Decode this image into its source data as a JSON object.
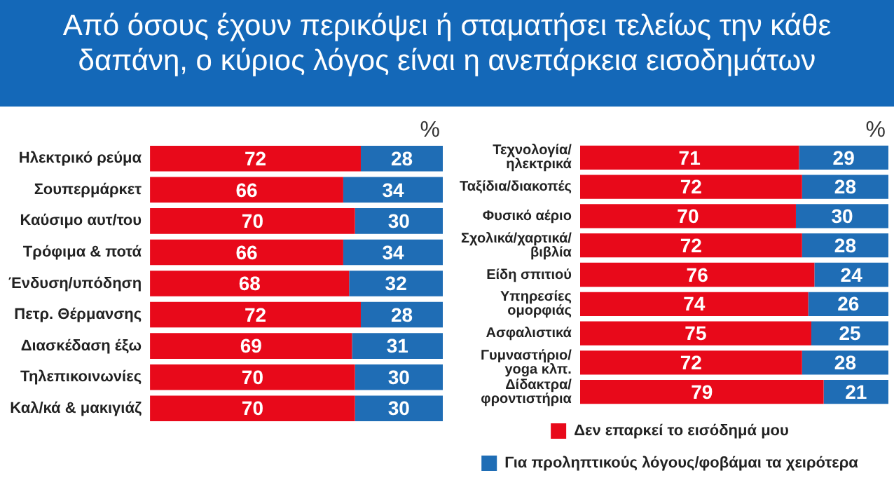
{
  "chart_data": [
    {
      "type": "bar",
      "orientation": "horizontal",
      "stacked": true,
      "title": "Από όσους έχουν περικόψει ή σταματήσει τελείως την κάθε δαπάνη, ο κύριος λόγος είναι η ανεπάρκεια εισοδημάτων",
      "categories": [
        "Ηλεκτρικό ρεύμα",
        "Σουπερμάρκετ",
        "Καύσιμο αυτ/του",
        "Τρόφιμα & ποτά",
        "Ένδυση/υπόδηση",
        "Πετρ. Θέρμανσης",
        "Διασκέδαση έξω",
        "Τηλεπικοινωνίες",
        "Καλ/κά & μακιγιάζ"
      ],
      "series": [
        {
          "color": "#e8091a",
          "values": [
            72,
            66,
            70,
            66,
            68,
            72,
            69,
            70,
            70
          ]
        },
        {
          "color": "#1f6db5",
          "values": [
            28,
            34,
            30,
            34,
            32,
            28,
            31,
            30,
            30
          ]
        }
      ],
      "xlim": [
        0,
        100
      ],
      "tick_labels": "y",
      "data_labels": true,
      "grid": false,
      "legend": false,
      "annotations": [
        "%"
      ]
    },
    {
      "type": "bar",
      "orientation": "horizontal",
      "stacked": true,
      "categories": [
        "Τεχνολογία/\nηλεκτρικά",
        "Ταξίδια/διακοπές",
        "Φυσικό αέριο",
        "Σχολικά/χαρτικά/\nβιβλία",
        "Είδη σπιτιού",
        "Υπηρεσίες\nομορφιάς",
        "Ασφαλιστικά",
        "Γυμναστήριο/\nyoga κλπ.",
        "Δίδακτρα/\nφροντιστήρια"
      ],
      "series": [
        {
          "name": "Δεν επαρκεί το εισόδημά μου",
          "color": "#e8091a",
          "values": [
            71,
            72,
            70,
            72,
            76,
            74,
            75,
            72,
            79
          ]
        },
        {
          "name": "Για προληπτικούς λόγους/φοβάμαι τα χειρότερα",
          "color": "#1f6db5",
          "values": [
            29,
            28,
            30,
            28,
            24,
            26,
            25,
            28,
            21
          ]
        }
      ],
      "xlim": [
        0,
        100
      ],
      "tick_labels": "y",
      "data_labels": true,
      "grid": false,
      "legend": "bottom",
      "annotations": [
        "%"
      ]
    }
  ]
}
